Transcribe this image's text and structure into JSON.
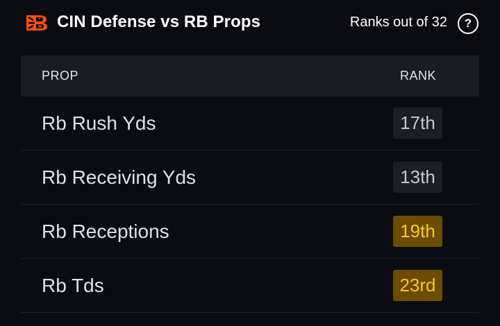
{
  "header": {
    "team_logo_icon": "bengals-b-logo-icon",
    "title": "CIN Defense vs RB Props",
    "ranks_note": "Ranks out of 32",
    "help_label": "?"
  },
  "table": {
    "columns": {
      "prop": "PROP",
      "rank": "RANK"
    },
    "rows": [
      {
        "prop": "Rb Rush Yds",
        "rank": "17th",
        "status": "neutral"
      },
      {
        "prop": "Rb Receiving Yds",
        "rank": "13th",
        "status": "neutral"
      },
      {
        "prop": "Rb Receptions",
        "rank": "19th",
        "status": "warn"
      },
      {
        "prop": "Rb Tds",
        "rank": "23rd",
        "status": "warn"
      }
    ]
  },
  "colors": {
    "background": "#0b0c12",
    "header_row": "#1a1c24",
    "neutral_badge_bg": "#1c1e26",
    "warn_badge_bg": "#6b4c00",
    "warn_badge_text": "#ffc526",
    "logo_orange": "#fb4f14"
  }
}
